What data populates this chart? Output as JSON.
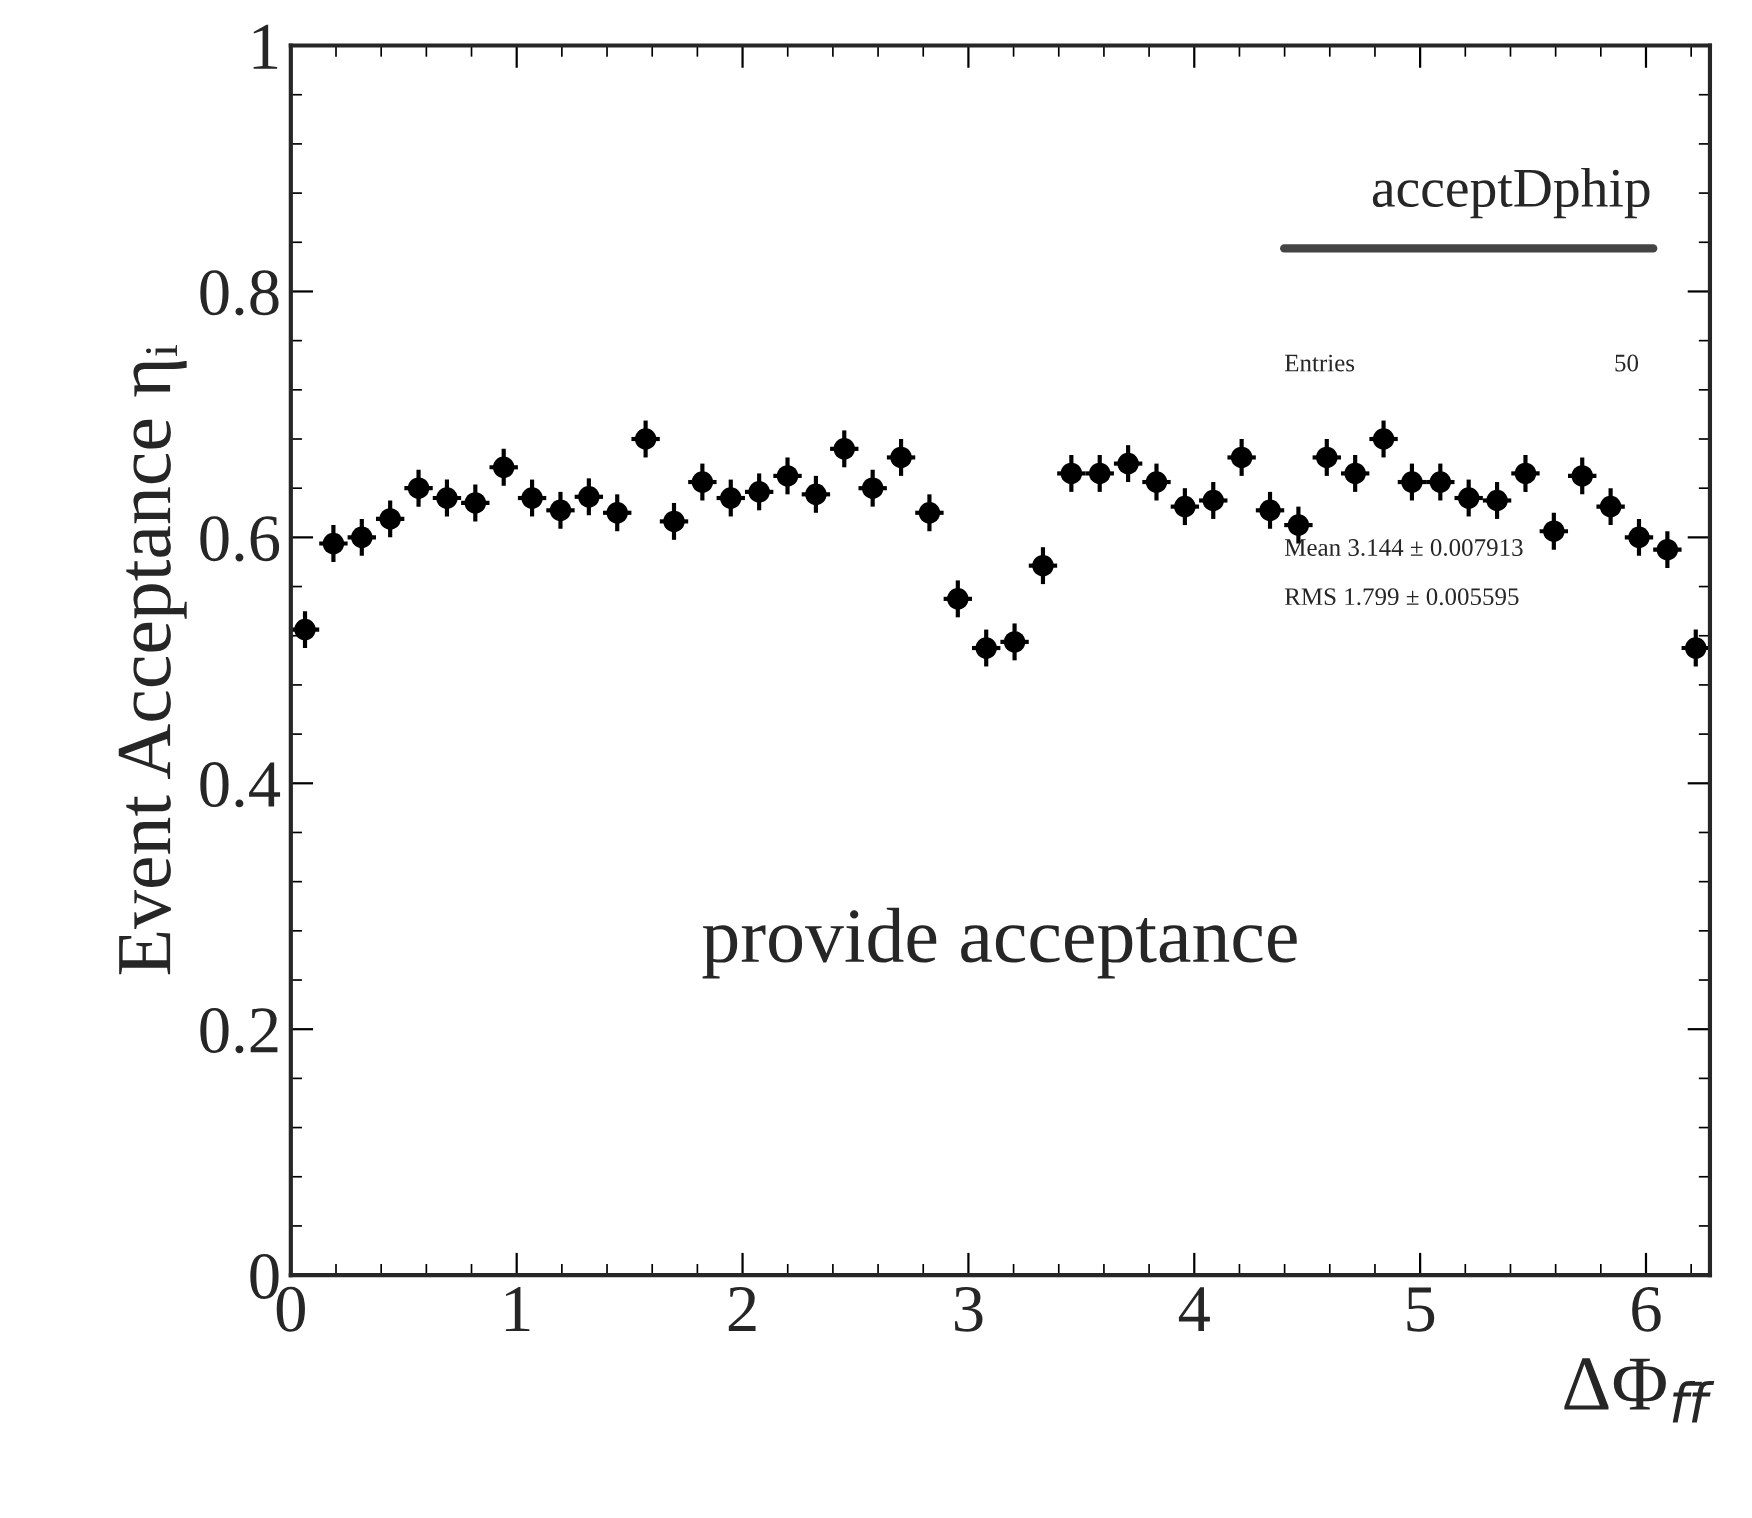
{
  "chart_data": {
    "type": "scatter",
    "xlabel": "ΔΦ$_{ff̄}$",
    "ylabel": "Event Acceptance ηᵢ",
    "x": [
      0.0628,
      0.1885,
      0.3142,
      0.4398,
      0.5655,
      0.6912,
      0.8168,
      0.9425,
      1.0681,
      1.1938,
      1.3195,
      1.4451,
      1.5708,
      1.6965,
      1.8221,
      1.9478,
      2.0735,
      2.1991,
      2.3248,
      2.4504,
      2.5761,
      2.7018,
      2.8274,
      2.9531,
      3.0788,
      3.2044,
      3.3301,
      3.4558,
      3.5814,
      3.7071,
      3.8327,
      3.9584,
      4.0841,
      4.2097,
      4.3354,
      4.4611,
      4.5867,
      4.7124,
      4.8381,
      4.9637,
      5.0894,
      5.215,
      5.3407,
      5.4664,
      5.592,
      5.7177,
      5.8434,
      5.969,
      6.0947,
      6.2204
    ],
    "series": [
      {
        "color": "#000000",
        "values": [
          0.525,
          0.595,
          0.6,
          0.615,
          0.64,
          0.632,
          0.628,
          0.657,
          0.632,
          0.622,
          0.633,
          0.62,
          0.68,
          0.613,
          0.645,
          0.632,
          0.637,
          0.65,
          0.635,
          0.672,
          0.64,
          0.665,
          0.62,
          0.55,
          0.51,
          0.515,
          0.577,
          0.652,
          0.652,
          0.66,
          0.645,
          0.625,
          0.63,
          0.665,
          0.622,
          0.61,
          0.665,
          0.652,
          0.68,
          0.645,
          0.645,
          0.632,
          0.63,
          0.652,
          0.605,
          0.65,
          0.625,
          0.6,
          0.59,
          0.51
        ],
        "errors": [
          0.015,
          0.015,
          0.015,
          0.015,
          0.015,
          0.015,
          0.015,
          0.015,
          0.015,
          0.015,
          0.015,
          0.015,
          0.015,
          0.015,
          0.015,
          0.015,
          0.015,
          0.015,
          0.015,
          0.015,
          0.015,
          0.015,
          0.015,
          0.015,
          0.015,
          0.015,
          0.015,
          0.015,
          0.015,
          0.015,
          0.015,
          0.015,
          0.015,
          0.015,
          0.015,
          0.015,
          0.015,
          0.015,
          0.015,
          0.015,
          0.015,
          0.015,
          0.015,
          0.015,
          0.015,
          0.015,
          0.015,
          0.015,
          0.015,
          0.015
        ],
        "xerrors": [
          0.0628,
          0.0628,
          0.0628,
          0.0628,
          0.0628,
          0.0628,
          0.0628,
          0.0628,
          0.0628,
          0.0628,
          0.0628,
          0.0628,
          0.0628,
          0.0628,
          0.0628,
          0.0628,
          0.0628,
          0.0628,
          0.0628,
          0.0628,
          0.0628,
          0.0628,
          0.0628,
          0.0628,
          0.0628,
          0.0628,
          0.0628,
          0.0628,
          0.0628,
          0.0628,
          0.0628,
          0.0628,
          0.0628,
          0.0628,
          0.0628,
          0.0628,
          0.0628,
          0.0628,
          0.0628,
          0.0628,
          0.0628,
          0.0628,
          0.0628,
          0.0628,
          0.0628,
          0.0628,
          0.0628,
          0.0628,
          0.0628,
          0.0628
        ]
      }
    ],
    "xlim": [
      0,
      6.2832
    ],
    "xticks": [
      0,
      1,
      2,
      3,
      4,
      5,
      6
    ],
    "ylim": [
      0,
      1
    ],
    "yticks": [
      0,
      0.2,
      0.4,
      0.6,
      0.8,
      1
    ],
    "marker": "circle",
    "grid": false,
    "annotations": [
      "acceptDphip",
      "Entries",
      "50",
      "Mean 3.144 ± 0.007913",
      "RMS 1.799 ± 0.005595",
      "provide acceptance"
    ]
  }
}
